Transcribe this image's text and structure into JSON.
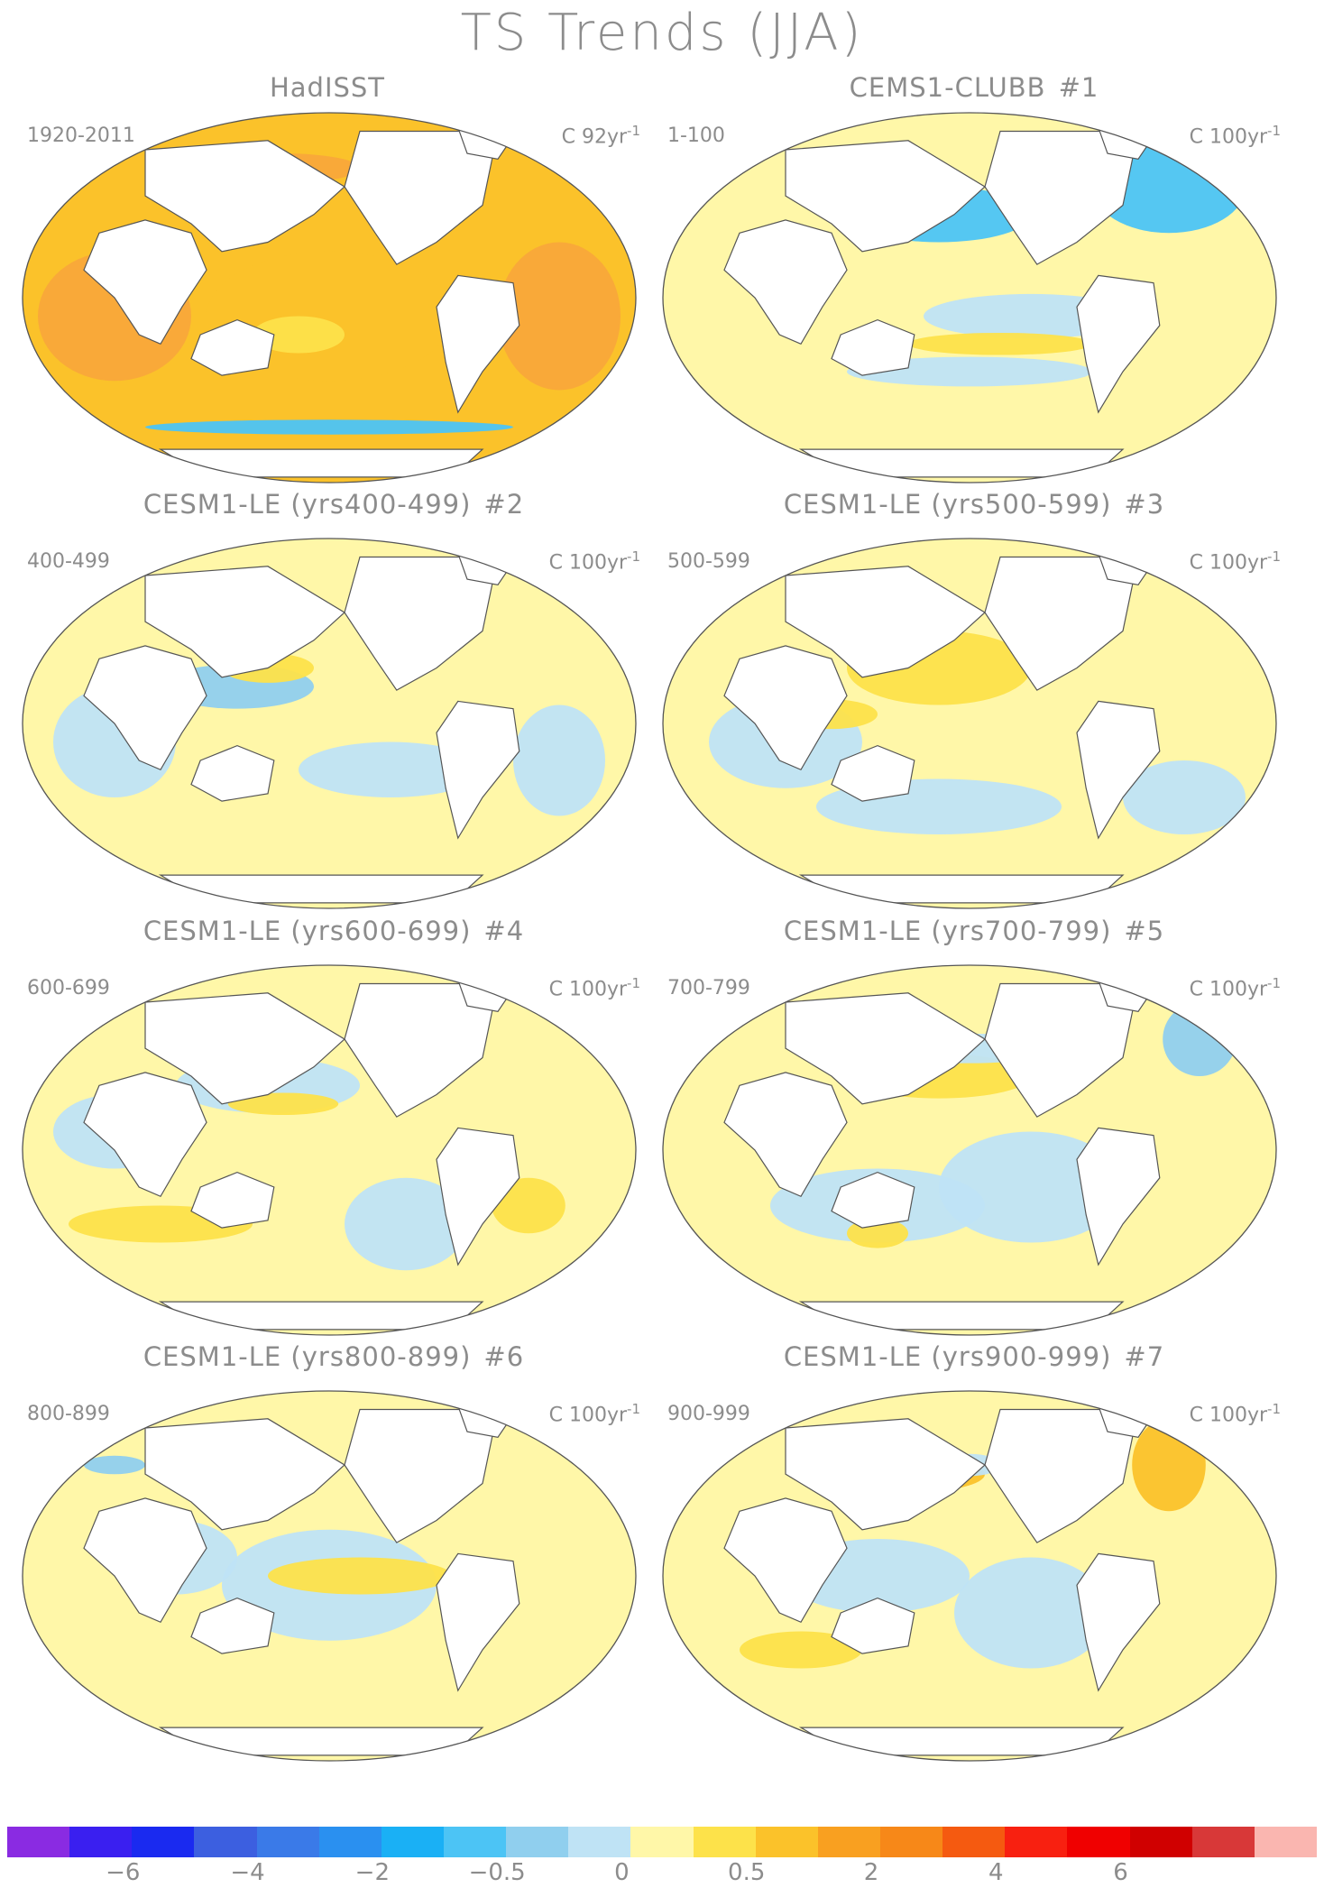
{
  "title": "TS Trends (JJA)",
  "panels": [
    {
      "title": "HadISST",
      "number": "",
      "period": "1920-2011",
      "units": "C 92yr",
      "units_exp": "-1",
      "scheme": "warm"
    },
    {
      "title": "CEMS1-CLUBB",
      "number": "#1",
      "period": "1-100",
      "units": "C 100yr",
      "units_exp": "-1",
      "scheme": "m1"
    },
    {
      "title": "CESM1-LE (yrs400-499)",
      "number": "#2",
      "period": "400-499",
      "units": "C 100yr",
      "units_exp": "-1",
      "scheme": "m2"
    },
    {
      "title": "CESM1-LE (yrs500-599)",
      "number": "#3",
      "period": "500-599",
      "units": "C 100yr",
      "units_exp": "-1",
      "scheme": "m3"
    },
    {
      "title": "CESM1-LE (yrs600-699)",
      "number": "#4",
      "period": "600-699",
      "units": "C 100yr",
      "units_exp": "-1",
      "scheme": "m4"
    },
    {
      "title": "CESM1-LE (yrs700-799)",
      "number": "#5",
      "period": "700-799",
      "units": "C 100yr",
      "units_exp": "-1",
      "scheme": "m5"
    },
    {
      "title": "CESM1-LE (yrs800-899)",
      "number": "#6",
      "period": "800-899",
      "units": "C 100yr",
      "units_exp": "-1",
      "scheme": "m6"
    },
    {
      "title": "CESM1-LE (yrs900-999)",
      "number": "#7",
      "period": "900-999",
      "units": "C 100yr",
      "units_exp": "-1",
      "scheme": "m7"
    }
  ],
  "colorbar": {
    "colors": [
      "#8a2be2",
      "#3a1ff0",
      "#1a2af0",
      "#3c5fe0",
      "#3a7ae8",
      "#2a90f0",
      "#1ab0f5",
      "#4cc4f5",
      "#90cfee",
      "#bfe3f5",
      "#fff7a8",
      "#fde24a",
      "#fbc22a",
      "#f9a020",
      "#f78818",
      "#f55a10",
      "#f82010",
      "#f00000",
      "#d00000",
      "#d83838",
      "#fab6b0"
    ],
    "labels": [
      "-6",
      "-4",
      "-2",
      "-0.5",
      "0",
      "0.5",
      "2",
      "4",
      "6"
    ],
    "label_positions": [
      2,
      4,
      6,
      8,
      10,
      12,
      14,
      16,
      18
    ]
  },
  "palette": {
    "ocean_warm": "#f9a83a",
    "ocean_warm2": "#fbc22a",
    "ocean_yellow": "#fff7a8",
    "ocean_yellow2": "#fde24a",
    "ocean_blue": "#bfe3f5",
    "ocean_blue2": "#90cfee",
    "ocean_blue3": "#4cc4f5",
    "land": "#ffffff",
    "outline": "#555555"
  }
}
